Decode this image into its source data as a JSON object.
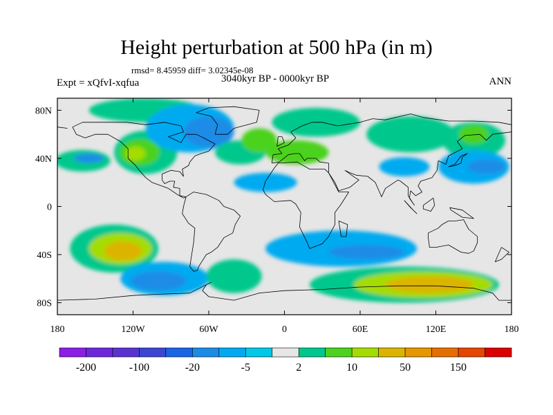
{
  "title": "Height perturbation at 500 hPa (in m)",
  "stats": "rmsd= 8.45959 diff= 3.02345e-08",
  "experiment": "Expt = xQfvI-xqfua",
  "period": "3040kyr BP - 0000kyr BP",
  "season": "ANN",
  "map": {
    "lon_range": [
      -180,
      180
    ],
    "lat_range": [
      -90,
      90
    ],
    "lon_ticks": [
      {
        "value": -180,
        "label": "180"
      },
      {
        "value": -120,
        "label": "120W"
      },
      {
        "value": -60,
        "label": "60W"
      },
      {
        "value": 0,
        "label": "0"
      },
      {
        "value": 60,
        "label": "60E"
      },
      {
        "value": 120,
        "label": "120E"
      },
      {
        "value": 180,
        "label": "180"
      }
    ],
    "lat_ticks": [
      {
        "value": 80,
        "label": "80N"
      },
      {
        "value": 40,
        "label": "40N"
      },
      {
        "value": 0,
        "label": "0"
      },
      {
        "value": -40,
        "label": "40S"
      },
      {
        "value": -80,
        "label": "80S"
      }
    ],
    "regions": [
      {
        "fill": "#00c88c",
        "lon": -160,
        "lat": 38,
        "rlon": 22,
        "rlat": 9
      },
      {
        "fill": "#1a8ce6",
        "lon": -155,
        "lat": 40,
        "rlon": 12,
        "rlat": 4
      },
      {
        "fill": "#00c88c",
        "lon": -110,
        "lat": 45,
        "rlon": 25,
        "rlat": 18
      },
      {
        "fill": "#4cd21e",
        "lon": -115,
        "lat": 45,
        "rlon": 16,
        "rlat": 11
      },
      {
        "fill": "#a5dc00",
        "lon": -118,
        "lat": 44,
        "rlon": 8,
        "rlat": 6
      },
      {
        "fill": "#00c88c",
        "lon": -110,
        "lat": 80,
        "rlon": 45,
        "rlat": 10
      },
      {
        "fill": "#00aaf0",
        "lon": -75,
        "lat": 65,
        "rlon": 35,
        "rlat": 20
      },
      {
        "fill": "#1a8ce6",
        "lon": -60,
        "lat": 62,
        "rlon": 20,
        "rlat": 13
      },
      {
        "fill": "#00c88c",
        "lon": -35,
        "lat": 45,
        "rlon": 20,
        "rlat": 10
      },
      {
        "fill": "#4cd21e",
        "lon": -20,
        "lat": 55,
        "rlon": 14,
        "rlat": 10
      },
      {
        "fill": "#00aaf0",
        "lon": -15,
        "lat": 20,
        "rlon": 25,
        "rlat": 8
      },
      {
        "fill": "#00c88c",
        "lon": 25,
        "lat": 70,
        "rlon": 35,
        "rlat": 12
      },
      {
        "fill": "#4cd21e",
        "lon": 10,
        "lat": 45,
        "rlon": 25,
        "rlat": 10
      },
      {
        "fill": "#00c88c",
        "lon": 100,
        "lat": 60,
        "rlon": 35,
        "rlat": 15
      },
      {
        "fill": "#00aaf0",
        "lon": 95,
        "lat": 33,
        "rlon": 20,
        "rlat": 8
      },
      {
        "fill": "#00c88c",
        "lon": 150,
        "lat": 55,
        "rlon": 25,
        "rlat": 15
      },
      {
        "fill": "#4cd21e",
        "lon": 150,
        "lat": 60,
        "rlon": 12,
        "rlat": 8
      },
      {
        "fill": "#00aaf0",
        "lon": 150,
        "lat": 33,
        "rlon": 28,
        "rlat": 14
      },
      {
        "fill": "#1a8ce6",
        "lon": 160,
        "lat": 33,
        "rlon": 15,
        "rlat": 6
      },
      {
        "fill": "#00c88c",
        "lon": -135,
        "lat": -35,
        "rlon": 35,
        "rlat": 20
      },
      {
        "fill": "#a5dc00",
        "lon": -130,
        "lat": -35,
        "rlon": 25,
        "rlat": 13
      },
      {
        "fill": "#dcb400",
        "lon": -128,
        "lat": -37,
        "rlon": 15,
        "rlat": 8
      },
      {
        "fill": "#00aaf0",
        "lon": -95,
        "lat": -60,
        "rlon": 35,
        "rlat": 14
      },
      {
        "fill": "#1a8ce6",
        "lon": -100,
        "lat": -62,
        "rlon": 22,
        "rlat": 8
      },
      {
        "fill": "#00c88c",
        "lon": -40,
        "lat": -58,
        "rlon": 22,
        "rlat": 14
      },
      {
        "fill": "#00aaf0",
        "lon": 45,
        "lat": -35,
        "rlon": 60,
        "rlat": 15
      },
      {
        "fill": "#1a8ce6",
        "lon": 65,
        "lat": -38,
        "rlon": 30,
        "rlat": 6
      },
      {
        "fill": "#00c88c",
        "lon": 95,
        "lat": -65,
        "rlon": 75,
        "rlat": 15
      },
      {
        "fill": "#a5dc00",
        "lon": 110,
        "lat": -65,
        "rlon": 55,
        "rlat": 11
      },
      {
        "fill": "#dcb400",
        "lon": 115,
        "lat": -65,
        "rlon": 35,
        "rlat": 7
      }
    ],
    "coastlines": [
      [
        [
          -168,
          66
        ],
        [
          -160,
          70
        ],
        [
          -140,
          70
        ],
        [
          -125,
          70
        ],
        [
          -110,
          68
        ],
        [
          -95,
          70
        ],
        [
          -82,
          67
        ],
        [
          -80,
          62
        ],
        [
          -92,
          58
        ],
        [
          -82,
          53
        ],
        [
          -78,
          60
        ],
        [
          -70,
          60
        ],
        [
          -64,
          57
        ],
        [
          -55,
          52
        ],
        [
          -60,
          46
        ],
        [
          -66,
          44
        ],
        [
          -71,
          42
        ],
        [
          -75,
          37
        ],
        [
          -76,
          34
        ],
        [
          -81,
          31
        ],
        [
          -80,
          25
        ],
        [
          -83,
          29
        ],
        [
          -90,
          30
        ],
        [
          -97,
          27
        ],
        [
          -97,
          22
        ],
        [
          -95,
          19
        ],
        [
          -91,
          21
        ],
        [
          -87,
          21
        ],
        [
          -88,
          16
        ],
        [
          -83,
          15
        ],
        [
          -83,
          9
        ],
        [
          -78,
          8
        ],
        [
          -80,
          7
        ],
        [
          -85,
          10
        ],
        [
          -92,
          15
        ],
        [
          -105,
          20
        ],
        [
          -110,
          24
        ],
        [
          -115,
          30
        ],
        [
          -118,
          34
        ],
        [
          -124,
          40
        ],
        [
          -124,
          48
        ],
        [
          -130,
          54
        ],
        [
          -140,
          60
        ],
        [
          -150,
          60
        ],
        [
          -158,
          57
        ],
        [
          -165,
          60
        ],
        [
          -168,
          66
        ]
      ],
      [
        [
          -78,
          8
        ],
        [
          -72,
          12
        ],
        [
          -62,
          10
        ],
        [
          -52,
          5
        ],
        [
          -48,
          0
        ],
        [
          -40,
          -3
        ],
        [
          -35,
          -8
        ],
        [
          -39,
          -15
        ],
        [
          -41,
          -22
        ],
        [
          -48,
          -26
        ],
        [
          -53,
          -34
        ],
        [
          -58,
          -38
        ],
        [
          -62,
          -40
        ],
        [
          -65,
          -45
        ],
        [
          -68,
          -50
        ],
        [
          -69,
          -53
        ],
        [
          -72,
          -54
        ],
        [
          -75,
          -50
        ],
        [
          -74,
          -43
        ],
        [
          -72,
          -30
        ],
        [
          -71,
          -18
        ],
        [
          -76,
          -14
        ],
        [
          -81,
          -6
        ],
        [
          -80,
          0
        ],
        [
          -78,
          8
        ]
      ],
      [
        [
          -55,
          60
        ],
        [
          -45,
          60
        ],
        [
          -40,
          65
        ],
        [
          -22,
          70
        ],
        [
          -20,
          80
        ],
        [
          -40,
          83
        ],
        [
          -60,
          82
        ],
        [
          -70,
          78
        ],
        [
          -58,
          75
        ],
        [
          -53,
          68
        ],
        [
          -55,
          60
        ]
      ],
      [
        [
          -17,
          14
        ],
        [
          -15,
          21
        ],
        [
          -8,
          32
        ],
        [
          -5,
          36
        ],
        [
          10,
          37
        ],
        [
          20,
          31
        ],
        [
          32,
          31
        ],
        [
          35,
          28
        ],
        [
          43,
          12
        ],
        [
          51,
          12
        ],
        [
          45,
          2
        ],
        [
          40,
          -5
        ],
        [
          40,
          -15
        ],
        [
          35,
          -25
        ],
        [
          30,
          -31
        ],
        [
          20,
          -35
        ],
        [
          18,
          -30
        ],
        [
          12,
          -17
        ],
        [
          13,
          -5
        ],
        [
          9,
          2
        ],
        [
          5,
          5
        ],
        [
          -8,
          4
        ],
        [
          -15,
          10
        ],
        [
          -17,
          14
        ]
      ],
      [
        [
          -10,
          36
        ],
        [
          -9,
          43
        ],
        [
          -2,
          44
        ],
        [
          -5,
          48
        ],
        [
          3,
          51
        ],
        [
          9,
          57
        ],
        [
          5,
          62
        ],
        [
          14,
          67
        ],
        [
          22,
          70
        ],
        [
          30,
          70
        ],
        [
          42,
          67
        ],
        [
          60,
          70
        ],
        [
          70,
          73
        ],
        [
          80,
          72
        ],
        [
          100,
          77
        ],
        [
          110,
          74
        ],
        [
          130,
          71
        ],
        [
          150,
          71
        ],
        [
          170,
          70
        ],
        [
          180,
          68
        ]
      ],
      [
        [
          -180,
          66
        ],
        [
          -172,
          65
        ]
      ],
      [
        [
          180,
          62
        ],
        [
          165,
          60
        ],
        [
          160,
          55
        ],
        [
          155,
          60
        ],
        [
          143,
          59
        ],
        [
          137,
          54
        ],
        [
          141,
          48
        ],
        [
          130,
          42
        ],
        [
          128,
          35
        ],
        [
          122,
          38
        ],
        [
          121,
          30
        ],
        [
          117,
          24
        ],
        [
          108,
          21
        ],
        [
          106,
          17
        ],
        [
          109,
          12
        ],
        [
          104,
          9
        ],
        [
          100,
          13
        ],
        [
          99,
          7
        ],
        [
          103,
          1
        ],
        [
          98,
          9
        ],
        [
          98,
          16
        ],
        [
          92,
          21
        ],
        [
          90,
          22
        ],
        [
          80,
          15
        ],
        [
          77,
          8
        ],
        [
          72,
          20
        ],
        [
          66,
          25
        ],
        [
          57,
          26
        ],
        [
          52,
          28
        ],
        [
          48,
          30
        ],
        [
          56,
          24
        ],
        [
          59,
          22
        ],
        [
          52,
          16
        ],
        [
          43,
          13
        ],
        [
          40,
          20
        ],
        [
          35,
          28
        ],
        [
          35,
          36
        ],
        [
          28,
          37
        ],
        [
          25,
          40
        ],
        [
          18,
          40
        ],
        [
          16,
          38
        ],
        [
          12,
          44
        ],
        [
          8,
          44
        ],
        [
          3,
          43
        ],
        [
          -4,
          37
        ],
        [
          -10,
          36
        ]
      ],
      [
        [
          -6,
          50
        ],
        [
          -5,
          58
        ],
        [
          -2,
          58
        ],
        [
          0,
          53
        ],
        [
          -6,
          50
        ]
      ],
      [
        [
          130,
          33
        ],
        [
          135,
          34
        ],
        [
          140,
          36
        ],
        [
          141,
          41
        ],
        [
          145,
          44
        ],
        [
          140,
          42
        ],
        [
          135,
          35
        ],
        [
          130,
          33
        ]
      ],
      [
        [
          114,
          -22
        ],
        [
          114,
          -26
        ],
        [
          115,
          -34
        ],
        [
          120,
          -34
        ],
        [
          130,
          -32
        ],
        [
          135,
          -35
        ],
        [
          140,
          -38
        ],
        [
          146,
          -39
        ],
        [
          150,
          -37
        ],
        [
          153,
          -30
        ],
        [
          153,
          -25
        ],
        [
          146,
          -19
        ],
        [
          142,
          -11
        ],
        [
          136,
          -12
        ],
        [
          130,
          -12
        ],
        [
          125,
          -15
        ],
        [
          122,
          -18
        ],
        [
          114,
          -22
        ]
      ],
      [
        [
          -180,
          -78
        ],
        [
          -150,
          -77
        ],
        [
          -120,
          -74
        ],
        [
          -100,
          -73
        ],
        [
          -75,
          -72
        ],
        [
          -60,
          -64
        ],
        [
          -58,
          -63
        ],
        [
          -62,
          -65
        ],
        [
          -65,
          -70
        ],
        [
          -60,
          -75
        ],
        [
          -40,
          -78
        ],
        [
          -20,
          -72
        ],
        [
          0,
          -70
        ],
        [
          30,
          -69
        ],
        [
          60,
          -67
        ],
        [
          90,
          -66
        ],
        [
          120,
          -66
        ],
        [
          150,
          -68
        ],
        [
          165,
          -72
        ],
        [
          170,
          -78
        ],
        [
          180,
          -78
        ]
      ],
      [
        [
          95,
          5
        ],
        [
          102,
          -3
        ],
        [
          105,
          -6
        ],
        [
          100,
          -1
        ],
        [
          95,
          5
        ]
      ],
      [
        [
          110,
          1
        ],
        [
          118,
          7
        ],
        [
          119,
          1
        ],
        [
          116,
          -4
        ],
        [
          110,
          -2
        ],
        [
          110,
          1
        ]
      ],
      [
        [
          131,
          -1
        ],
        [
          141,
          -3
        ],
        [
          150,
          -10
        ],
        [
          141,
          -9
        ],
        [
          132,
          -3
        ],
        [
          131,
          -1
        ]
      ],
      [
        [
          43,
          -12
        ],
        [
          50,
          -15
        ],
        [
          49,
          -25
        ],
        [
          45,
          -25
        ],
        [
          43,
          -12
        ]
      ],
      [
        [
          172,
          -34
        ],
        [
          178,
          -38
        ],
        [
          172,
          -44
        ],
        [
          167,
          -46
        ],
        [
          172,
          -34
        ]
      ]
    ]
  },
  "colorbar": {
    "colors": [
      "#8c1ee6",
      "#6e28dc",
      "#5a32d2",
      "#3c46d2",
      "#1a64e6",
      "#1a8ce6",
      "#00aaf0",
      "#00c8e6",
      "#e6e6e6",
      "#00c88c",
      "#4cd21e",
      "#a5dc00",
      "#dcb400",
      "#e69600",
      "#e66e00",
      "#e64600",
      "#dc0000"
    ],
    "labels": [
      "-200",
      "-100",
      "-20",
      "-5",
      "2",
      "10",
      "50",
      "150"
    ]
  }
}
